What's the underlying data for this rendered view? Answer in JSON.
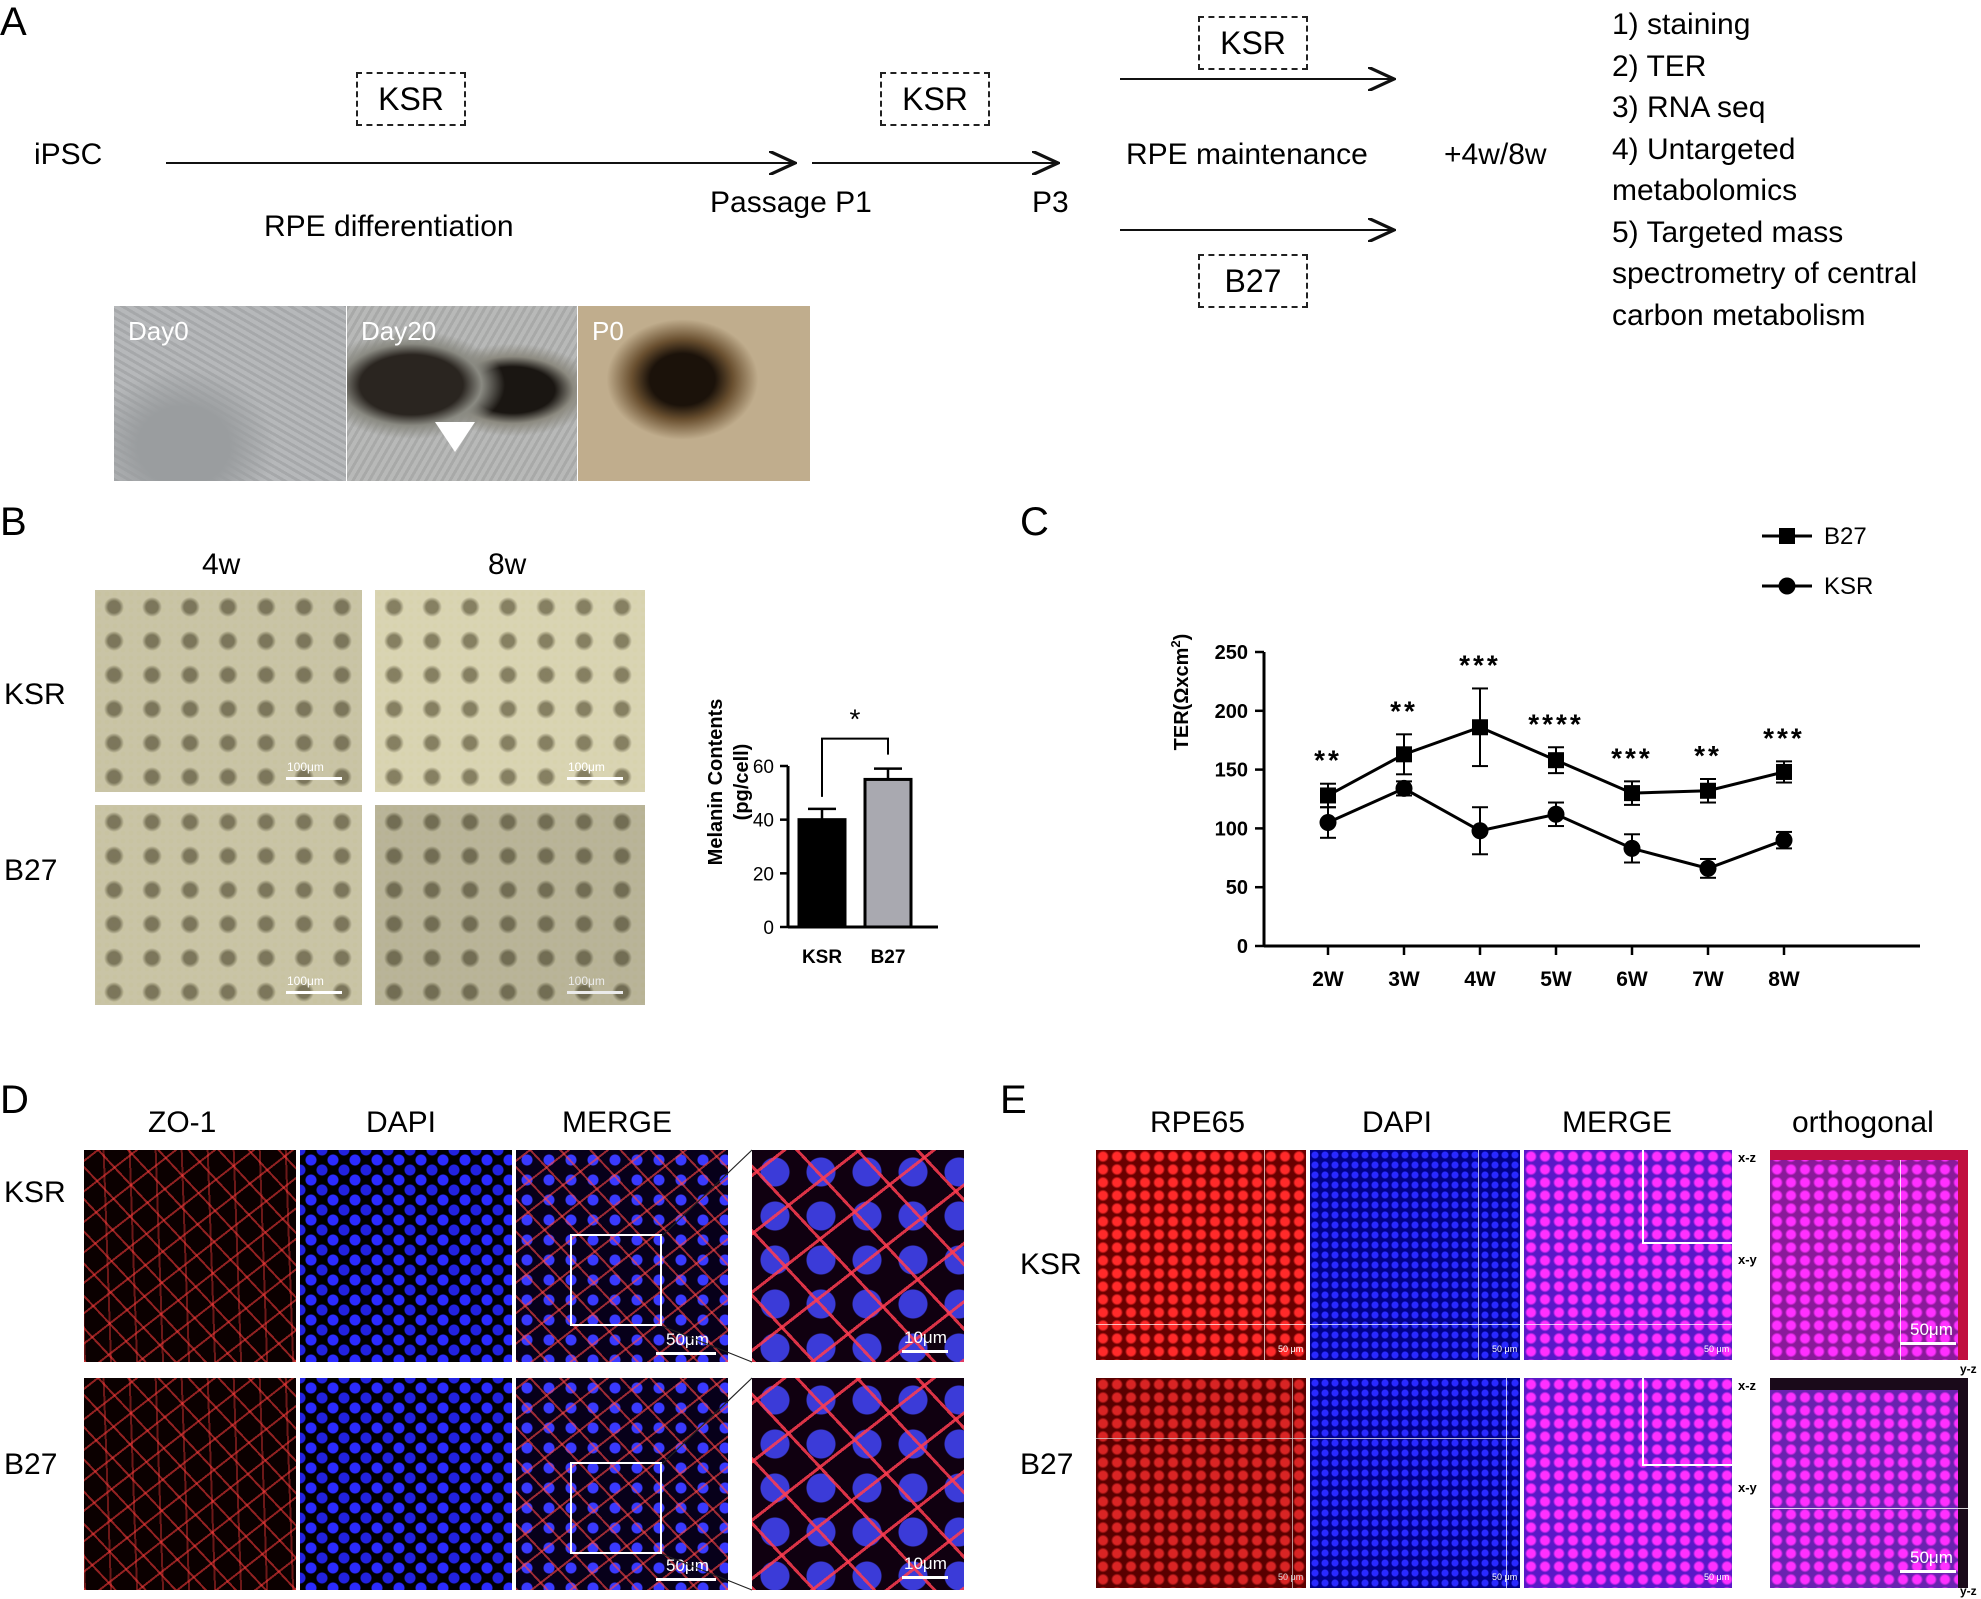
{
  "panelA": {
    "letter": "A",
    "ipsc": "iPSC",
    "ksr_box_1": "KSR",
    "ksr_box_2": "KSR",
    "ksr_box_3": "KSR",
    "b27_box": "B27",
    "rpe_differentiation": "RPE differentiation",
    "passage_p1": "Passage P1",
    "p3": "P3",
    "rpe_maintenance": "RPE maintenance",
    "weeks": "+4w/8w",
    "steps": [
      "1) staining",
      "2) TER",
      "3) RNA seq",
      "4) Untargeted",
      "metabolomics",
      "5) Targeted mass",
      "spectrometry of central",
      "carbon metabolism"
    ],
    "images": [
      "Day0",
      "Day20",
      "P0"
    ]
  },
  "panelB": {
    "letter": "B",
    "col_labels": [
      "4w",
      "8w"
    ],
    "row_labels": [
      "KSR",
      "B27"
    ],
    "scale_label": "100μm"
  },
  "panelB_chart": {
    "chart_data": {
      "type": "bar",
      "categories": [
        "KSR",
        "B27"
      ],
      "values": [
        40,
        55
      ],
      "errors": [
        4,
        4
      ],
      "colors": [
        "#000000",
        "#a9a9b0"
      ],
      "ylabel_line1": "Melanin Contents",
      "ylabel_line2": "(pg/cell)",
      "ylim": [
        0,
        60
      ],
      "yticks": [
        "0",
        "20",
        "40",
        "60"
      ],
      "significance": "*"
    }
  },
  "panelC": {
    "letter": "C",
    "chart_data": {
      "type": "line",
      "categories": [
        "2W",
        "3W",
        "4W",
        "5W",
        "6W",
        "7W",
        "8W"
      ],
      "ylabel": "TER(Ωxcm",
      "ylabel_sup": "2",
      "ylabel_close": ")",
      "ylim": [
        0,
        250
      ],
      "yticks": [
        "0",
        "50",
        "100",
        "150",
        "200",
        "250"
      ],
      "series": [
        {
          "name": "B27",
          "marker": "square",
          "values": [
            128,
            163,
            186,
            158,
            130,
            132,
            148
          ],
          "errors": [
            10,
            17,
            33,
            11,
            10,
            10,
            9
          ]
        },
        {
          "name": "KSR",
          "marker": "circle",
          "values": [
            105,
            134,
            98,
            112,
            83,
            66,
            90
          ],
          "errors": [
            13,
            6,
            20,
            10,
            12,
            8,
            7
          ]
        }
      ],
      "significance": [
        "**",
        "**",
        "***",
        "****",
        "***",
        "**",
        "***"
      ]
    }
  },
  "panelD": {
    "letter": "D",
    "col_labels": [
      "ZO-1",
      "DAPI",
      "MERGE"
    ],
    "row_labels": [
      "KSR",
      "B27"
    ],
    "scale_large": "50μm",
    "scale_small": "10μm"
  },
  "panelE": {
    "letter": "E",
    "col_labels": [
      "RPE65",
      "DAPI",
      "MERGE",
      "orthogonal"
    ],
    "row_labels": [
      "KSR",
      "B27"
    ],
    "xz": "x-z",
    "xy": "x-y",
    "yz": "y-z",
    "scale_large": "50μm",
    "scale_small": "50 μm"
  }
}
